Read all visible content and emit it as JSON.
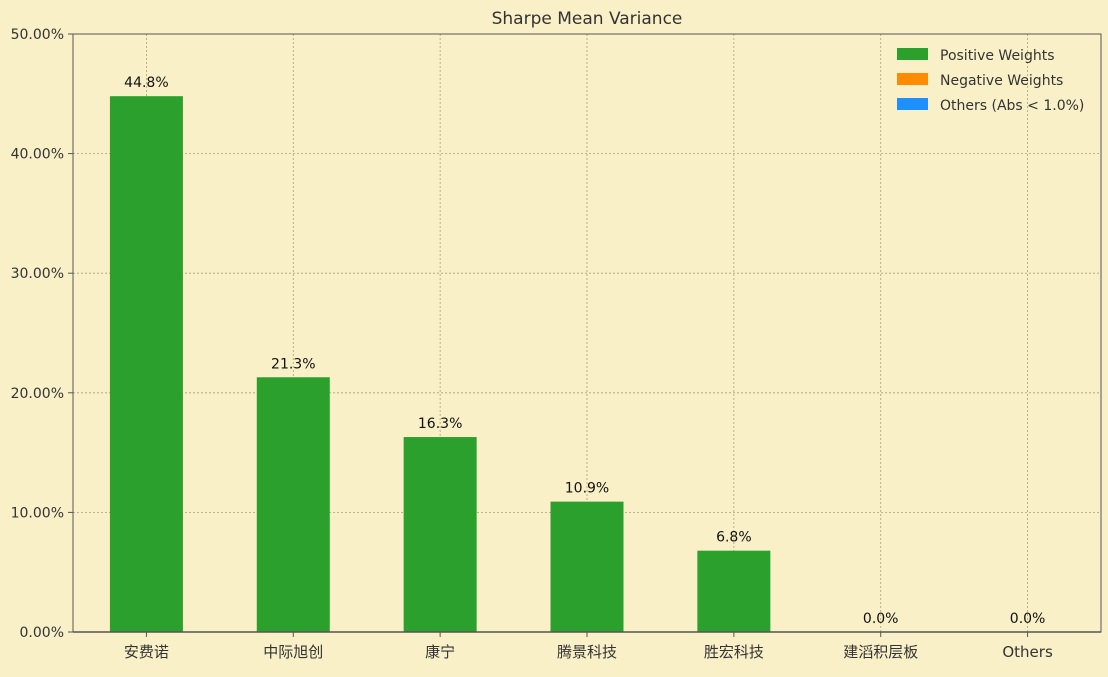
{
  "chart_data": {
    "type": "bar",
    "title": "Sharpe Mean Variance",
    "xlabel": "",
    "ylabel": "",
    "categories": [
      "安费诺",
      "中际旭创",
      "康宁",
      "腾景科技",
      "胜宏科技",
      "建滔积层板",
      "Others"
    ],
    "values": [
      44.8,
      21.3,
      16.3,
      10.9,
      6.8,
      0.0,
      0.0
    ],
    "value_labels": [
      "44.8%",
      "21.3%",
      "16.3%",
      "10.9%",
      "6.8%",
      "0.0%",
      "0.0%"
    ],
    "ylim": [
      0,
      50
    ],
    "yticks": [
      0,
      10,
      20,
      30,
      40,
      50
    ],
    "ytick_labels": [
      "0.00%",
      "10.00%",
      "20.00%",
      "30.00%",
      "40.00%",
      "50.00%"
    ],
    "grid": true,
    "legend": {
      "placement": "top-right",
      "entries": [
        {
          "label": "Positive Weights",
          "color": "#2ca02c"
        },
        {
          "label": "Negative Weights",
          "color": "#ff8c00"
        },
        {
          "label": "Others (Abs < 1.0%)",
          "color": "#1e90ff"
        }
      ]
    },
    "colors": {
      "background": "#faf0c8",
      "bar": "#2ca02c",
      "grid": "#a8a27a",
      "axis": "#555555"
    }
  }
}
